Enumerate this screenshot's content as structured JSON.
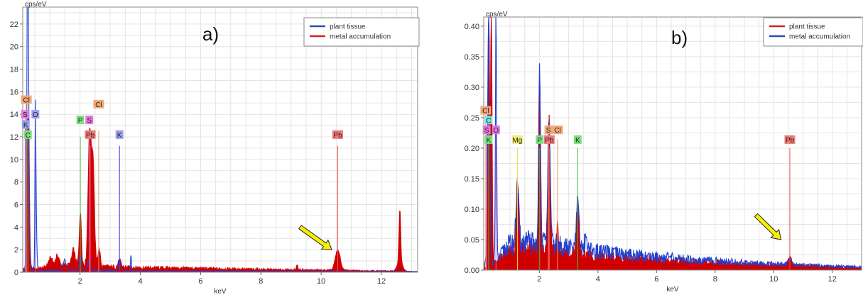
{
  "chart_data": [
    {
      "type": "line",
      "panel_label": "a)",
      "ylabel": "cps/eV",
      "xlabel": "keV",
      "xlim": [
        0.1,
        13.2
      ],
      "ylim": [
        0,
        23.5
      ],
      "x_ticks": [
        2,
        4,
        6,
        8,
        10,
        12
      ],
      "y_ticks": [
        0,
        2,
        4,
        6,
        8,
        10,
        12,
        14,
        16,
        18,
        20,
        22
      ],
      "grid": true,
      "legend_position": "top-right",
      "legend": [
        {
          "label": "plant tissue",
          "color": "#2a4bb8"
        },
        {
          "label": "metal accumulation",
          "color": "#d62020"
        }
      ],
      "series": [
        {
          "name": "metal accumulation",
          "color": "#d00000",
          "fill": true,
          "baseline": [
            [
              0.1,
              0.3
            ],
            [
              0.6,
              0.3
            ],
            [
              1.0,
              0.5
            ],
            [
              1.6,
              0.6
            ],
            [
              2.0,
              0.7
            ],
            [
              3.0,
              0.45
            ],
            [
              4.0,
              0.4
            ],
            [
              5.0,
              0.36
            ],
            [
              6.0,
              0.32
            ],
            [
              7.0,
              0.28
            ],
            [
              8.0,
              0.24
            ],
            [
              9.0,
              0.2
            ],
            [
              10.0,
              0.18
            ],
            [
              11.0,
              0.15
            ],
            [
              12.0,
              0.12
            ],
            [
              13.2,
              0.05
            ]
          ],
          "peaks": [
            {
              "center": 0.28,
              "height": 14.0,
              "width": 0.035
            },
            {
              "center": 1.02,
              "height": 0.7,
              "width": 0.07
            },
            {
              "center": 1.25,
              "height": 0.9,
              "width": 0.06
            },
            {
              "center": 1.78,
              "height": 1.3,
              "width": 0.05
            },
            {
              "center": 2.01,
              "height": 4.5,
              "width": 0.035
            },
            {
              "center": 2.32,
              "height": 11.8,
              "width": 0.05
            },
            {
              "center": 2.43,
              "height": 9.0,
              "width": 0.045
            },
            {
              "center": 2.63,
              "height": 1.5,
              "width": 0.04
            },
            {
              "center": 3.31,
              "height": 0.6,
              "width": 0.05
            },
            {
              "center": 9.2,
              "height": 0.5,
              "width": 0.02
            },
            {
              "center": 10.55,
              "height": 1.8,
              "width": 0.08
            },
            {
              "center": 12.61,
              "height": 4.5,
              "width": 0.025
            },
            {
              "center": 12.61,
              "height": 1.0,
              "width": 0.08
            }
          ]
        },
        {
          "name": "plant tissue",
          "color": "#1f3fd0",
          "fill": false,
          "baseline": [
            [
              0.1,
              0.1
            ],
            [
              1.0,
              0.15
            ],
            [
              2.0,
              0.2
            ],
            [
              4.0,
              0.1
            ],
            [
              8.0,
              0.08
            ],
            [
              13.2,
              0.05
            ]
          ],
          "peaks": [
            {
              "center": 0.26,
              "height": 21.0,
              "width": 0.02
            },
            {
              "center": 0.28,
              "height": 18.0,
              "width": 0.03
            },
            {
              "center": 0.52,
              "height": 11.8,
              "width": 0.015
            },
            {
              "center": 0.54,
              "height": 4.5,
              "width": 0.025
            },
            {
              "center": 1.49,
              "height": 1.0,
              "width": 0.04
            },
            {
              "center": 2.01,
              "height": 1.3,
              "width": 0.03
            },
            {
              "center": 2.3,
              "height": 0.9,
              "width": 0.04
            },
            {
              "center": 3.31,
              "height": 1.0,
              "width": 0.04
            },
            {
              "center": 3.69,
              "height": 1.5,
              "width": 0.015
            }
          ]
        }
      ],
      "element_markers": [
        {
          "label": "Cl",
          "x": 0.22,
          "label_y": 15.3,
          "line_top": 15.3,
          "color": "#f2a878",
          "line_color": "#e89a5c"
        },
        {
          "label": "S",
          "x": 0.18,
          "label_y": 14.0,
          "line_top": 14.0,
          "color": "#e27ae0",
          "line_color": "#d66ad6"
        },
        {
          "label": "O",
          "x": 0.52,
          "label_y": 14.0,
          "line_top": 14.0,
          "color": "#9aa0ee",
          "line_color": "#6c72e0"
        },
        {
          "label": "K",
          "x": 0.2,
          "label_y": 13.1,
          "line_top": 13.1,
          "color": "#9aa0ee",
          "line_color": "#6c72e0"
        },
        {
          "label": "C",
          "x": 0.27,
          "label_y": 12.2,
          "line_top": 12.2,
          "color": "#7fe07f",
          "line_color": "#3ec43e"
        },
        {
          "label": "P",
          "x": 2.01,
          "label_y": 13.5,
          "line_top": 12.0,
          "color": "#7fe07f",
          "line_color": "#3ec43e"
        },
        {
          "label": "S",
          "x": 2.31,
          "label_y": 13.5,
          "line_top": 12.5,
          "color": "#e27ae0",
          "line_color": "#d66ad6"
        },
        {
          "label": "Cl",
          "x": 2.62,
          "label_y": 14.9,
          "line_top": 12.5,
          "color": "#f2a878",
          "line_color": "#e89a5c"
        },
        {
          "label": "Pb",
          "x": 2.34,
          "label_y": 12.2,
          "line_top": 11.2,
          "color": "#f07a7a",
          "line_color": "#e85050"
        },
        {
          "label": "K",
          "x": 3.31,
          "label_y": 12.2,
          "line_top": 11.2,
          "color": "#9aa0ee",
          "line_color": "#3d3df0"
        },
        {
          "label": "Pb",
          "x": 10.55,
          "label_y": 12.2,
          "line_top": 11.2,
          "color": "#f07a7a",
          "line_color": "#e85050"
        }
      ],
      "arrow": {
        "from_x": 9.3,
        "from_y": 4.0,
        "to_x": 10.35,
        "to_y": 2.0,
        "color": "#f5f000"
      }
    },
    {
      "type": "line",
      "panel_label": "b)",
      "ylabel": "cps/eV",
      "xlabel": "keV",
      "xlim": [
        0.1,
        13.0
      ],
      "ylim": [
        0,
        0.415
      ],
      "x_ticks": [
        2,
        4,
        6,
        8,
        10,
        12
      ],
      "y_ticks": [
        0.0,
        0.05,
        0.1,
        0.15,
        0.2,
        0.25,
        0.3,
        0.35,
        0.4
      ],
      "y_tick_labels": [
        "0.00",
        "0.05",
        "0.10",
        "0.15",
        "0.20",
        "0.25",
        "0.30",
        "0.35",
        "0.40"
      ],
      "grid": true,
      "legend_position": "top-right",
      "legend": [
        {
          "label": "plant tissue",
          "color": "#d62020"
        },
        {
          "label": "metal accumulation",
          "color": "#2a4bb8"
        }
      ],
      "series": [
        {
          "name": "plant tissue",
          "color": "#d00000",
          "fill": true,
          "baseline": [
            [
              0.1,
              0.005
            ],
            [
              0.5,
              0.012
            ],
            [
              1.0,
              0.03
            ],
            [
              1.5,
              0.034
            ],
            [
              2.0,
              0.035
            ],
            [
              2.5,
              0.03
            ],
            [
              3.0,
              0.027
            ],
            [
              4.0,
              0.022
            ],
            [
              5.0,
              0.019
            ],
            [
              6.0,
              0.016
            ],
            [
              7.0,
              0.014
            ],
            [
              8.0,
              0.012
            ],
            [
              9.0,
              0.01
            ],
            [
              10.0,
              0.008
            ],
            [
              11.0,
              0.007
            ],
            [
              12.0,
              0.005
            ],
            [
              13.0,
              0.004
            ]
          ],
          "peaks": [
            {
              "center": 0.27,
              "height": 0.41,
              "width": 0.03
            },
            {
              "center": 0.36,
              "height": 0.41,
              "width": 0.025
            },
            {
              "center": 1.25,
              "height": 0.12,
              "width": 0.04
            },
            {
              "center": 2.01,
              "height": 0.29,
              "width": 0.03
            },
            {
              "center": 2.33,
              "height": 0.215,
              "width": 0.04
            },
            {
              "center": 2.62,
              "height": 0.05,
              "width": 0.03
            },
            {
              "center": 3.31,
              "height": 0.09,
              "width": 0.04
            },
            {
              "center": 10.55,
              "height": 0.014,
              "width": 0.06
            }
          ]
        },
        {
          "name": "metal accumulation",
          "color": "#1f3fd0",
          "fill": false,
          "baseline": [
            [
              0.1,
              0.01
            ],
            [
              0.55,
              0.015
            ],
            [
              0.9,
              0.04
            ],
            [
              1.4,
              0.045
            ],
            [
              2.0,
              0.045
            ],
            [
              2.6,
              0.04
            ],
            [
              3.2,
              0.035
            ],
            [
              3.6,
              0.033
            ],
            [
              4.0,
              0.03
            ],
            [
              5.0,
              0.025
            ],
            [
              6.0,
              0.022
            ],
            [
              7.0,
              0.018
            ],
            [
              8.0,
              0.015
            ],
            [
              9.0,
              0.012
            ],
            [
              10.0,
              0.01
            ],
            [
              11.0,
              0.008
            ],
            [
              12.0,
              0.006
            ],
            [
              13.0,
              0.005
            ]
          ],
          "peaks": [
            {
              "center": 0.27,
              "height": 0.41,
              "width": 0.035
            },
            {
              "center": 0.52,
              "height": 0.41,
              "width": 0.02
            },
            {
              "center": 1.25,
              "height": 0.095,
              "width": 0.045
            },
            {
              "center": 2.01,
              "height": 0.29,
              "width": 0.03
            },
            {
              "center": 2.33,
              "height": 0.2,
              "width": 0.04
            },
            {
              "center": 3.31,
              "height": 0.073,
              "width": 0.045
            },
            {
              "center": 3.59,
              "height": 0.02,
              "width": 0.05
            },
            {
              "center": 10.55,
              "height": 0.008,
              "width": 0.06
            }
          ]
        }
      ],
      "element_markers": [
        {
          "label": "Cl",
          "x": 0.17,
          "label_y": 0.262,
          "line_top": 0.262,
          "color": "#f2a878",
          "line_color": "#e89a5c"
        },
        {
          "label": "C",
          "x": 0.27,
          "label_y": 0.246,
          "line_top": 0.246,
          "color": "#7fe0e0",
          "line_color": "#3cc0c0"
        },
        {
          "label": "S",
          "x": 0.2,
          "label_y": 0.23,
          "line_top": 0.23,
          "color": "#e27ae0",
          "line_color": "#d66ad6"
        },
        {
          "label": "O",
          "x": 0.52,
          "label_y": 0.23,
          "line_top": 0.23,
          "color": "#e27ae0",
          "line_color": "#d66ad6"
        },
        {
          "label": "K",
          "x": 0.27,
          "label_y": 0.214,
          "line_top": 0.214,
          "color": "#7fe07f",
          "line_color": "#3ec43e"
        },
        {
          "label": "Mg",
          "x": 1.25,
          "label_y": 0.214,
          "line_top": 0.2,
          "color": "#f0f07a",
          "line_color": "#e8e040"
        },
        {
          "label": "P",
          "x": 2.01,
          "label_y": 0.214,
          "line_top": 0.2,
          "color": "#7fe07f",
          "line_color": "#3ec43e"
        },
        {
          "label": "Pb",
          "x": 2.34,
          "label_y": 0.214,
          "line_top": 0.2,
          "color": "#f07a7a",
          "line_color": "#e85050"
        },
        {
          "label": "S",
          "x": 2.31,
          "label_y": 0.23,
          "line_top": 0.23,
          "color": "#f2a878",
          "line_color": "#e89a5c"
        },
        {
          "label": "Cl",
          "x": 2.62,
          "label_y": 0.23,
          "line_top": 0.215,
          "color": "#f2a878",
          "line_color": "#e89a5c"
        },
        {
          "label": "K",
          "x": 3.31,
          "label_y": 0.214,
          "line_top": 0.2,
          "color": "#7fe07f",
          "line_color": "#3ec43e"
        },
        {
          "label": "Pb",
          "x": 10.55,
          "label_y": 0.214,
          "line_top": 0.2,
          "color": "#f07a7a",
          "line_color": "#e85050"
        }
      ],
      "arrow": {
        "from_x": 9.4,
        "from_y": 0.09,
        "to_x": 10.25,
        "to_y": 0.05,
        "color": "#f5f000"
      }
    }
  ]
}
